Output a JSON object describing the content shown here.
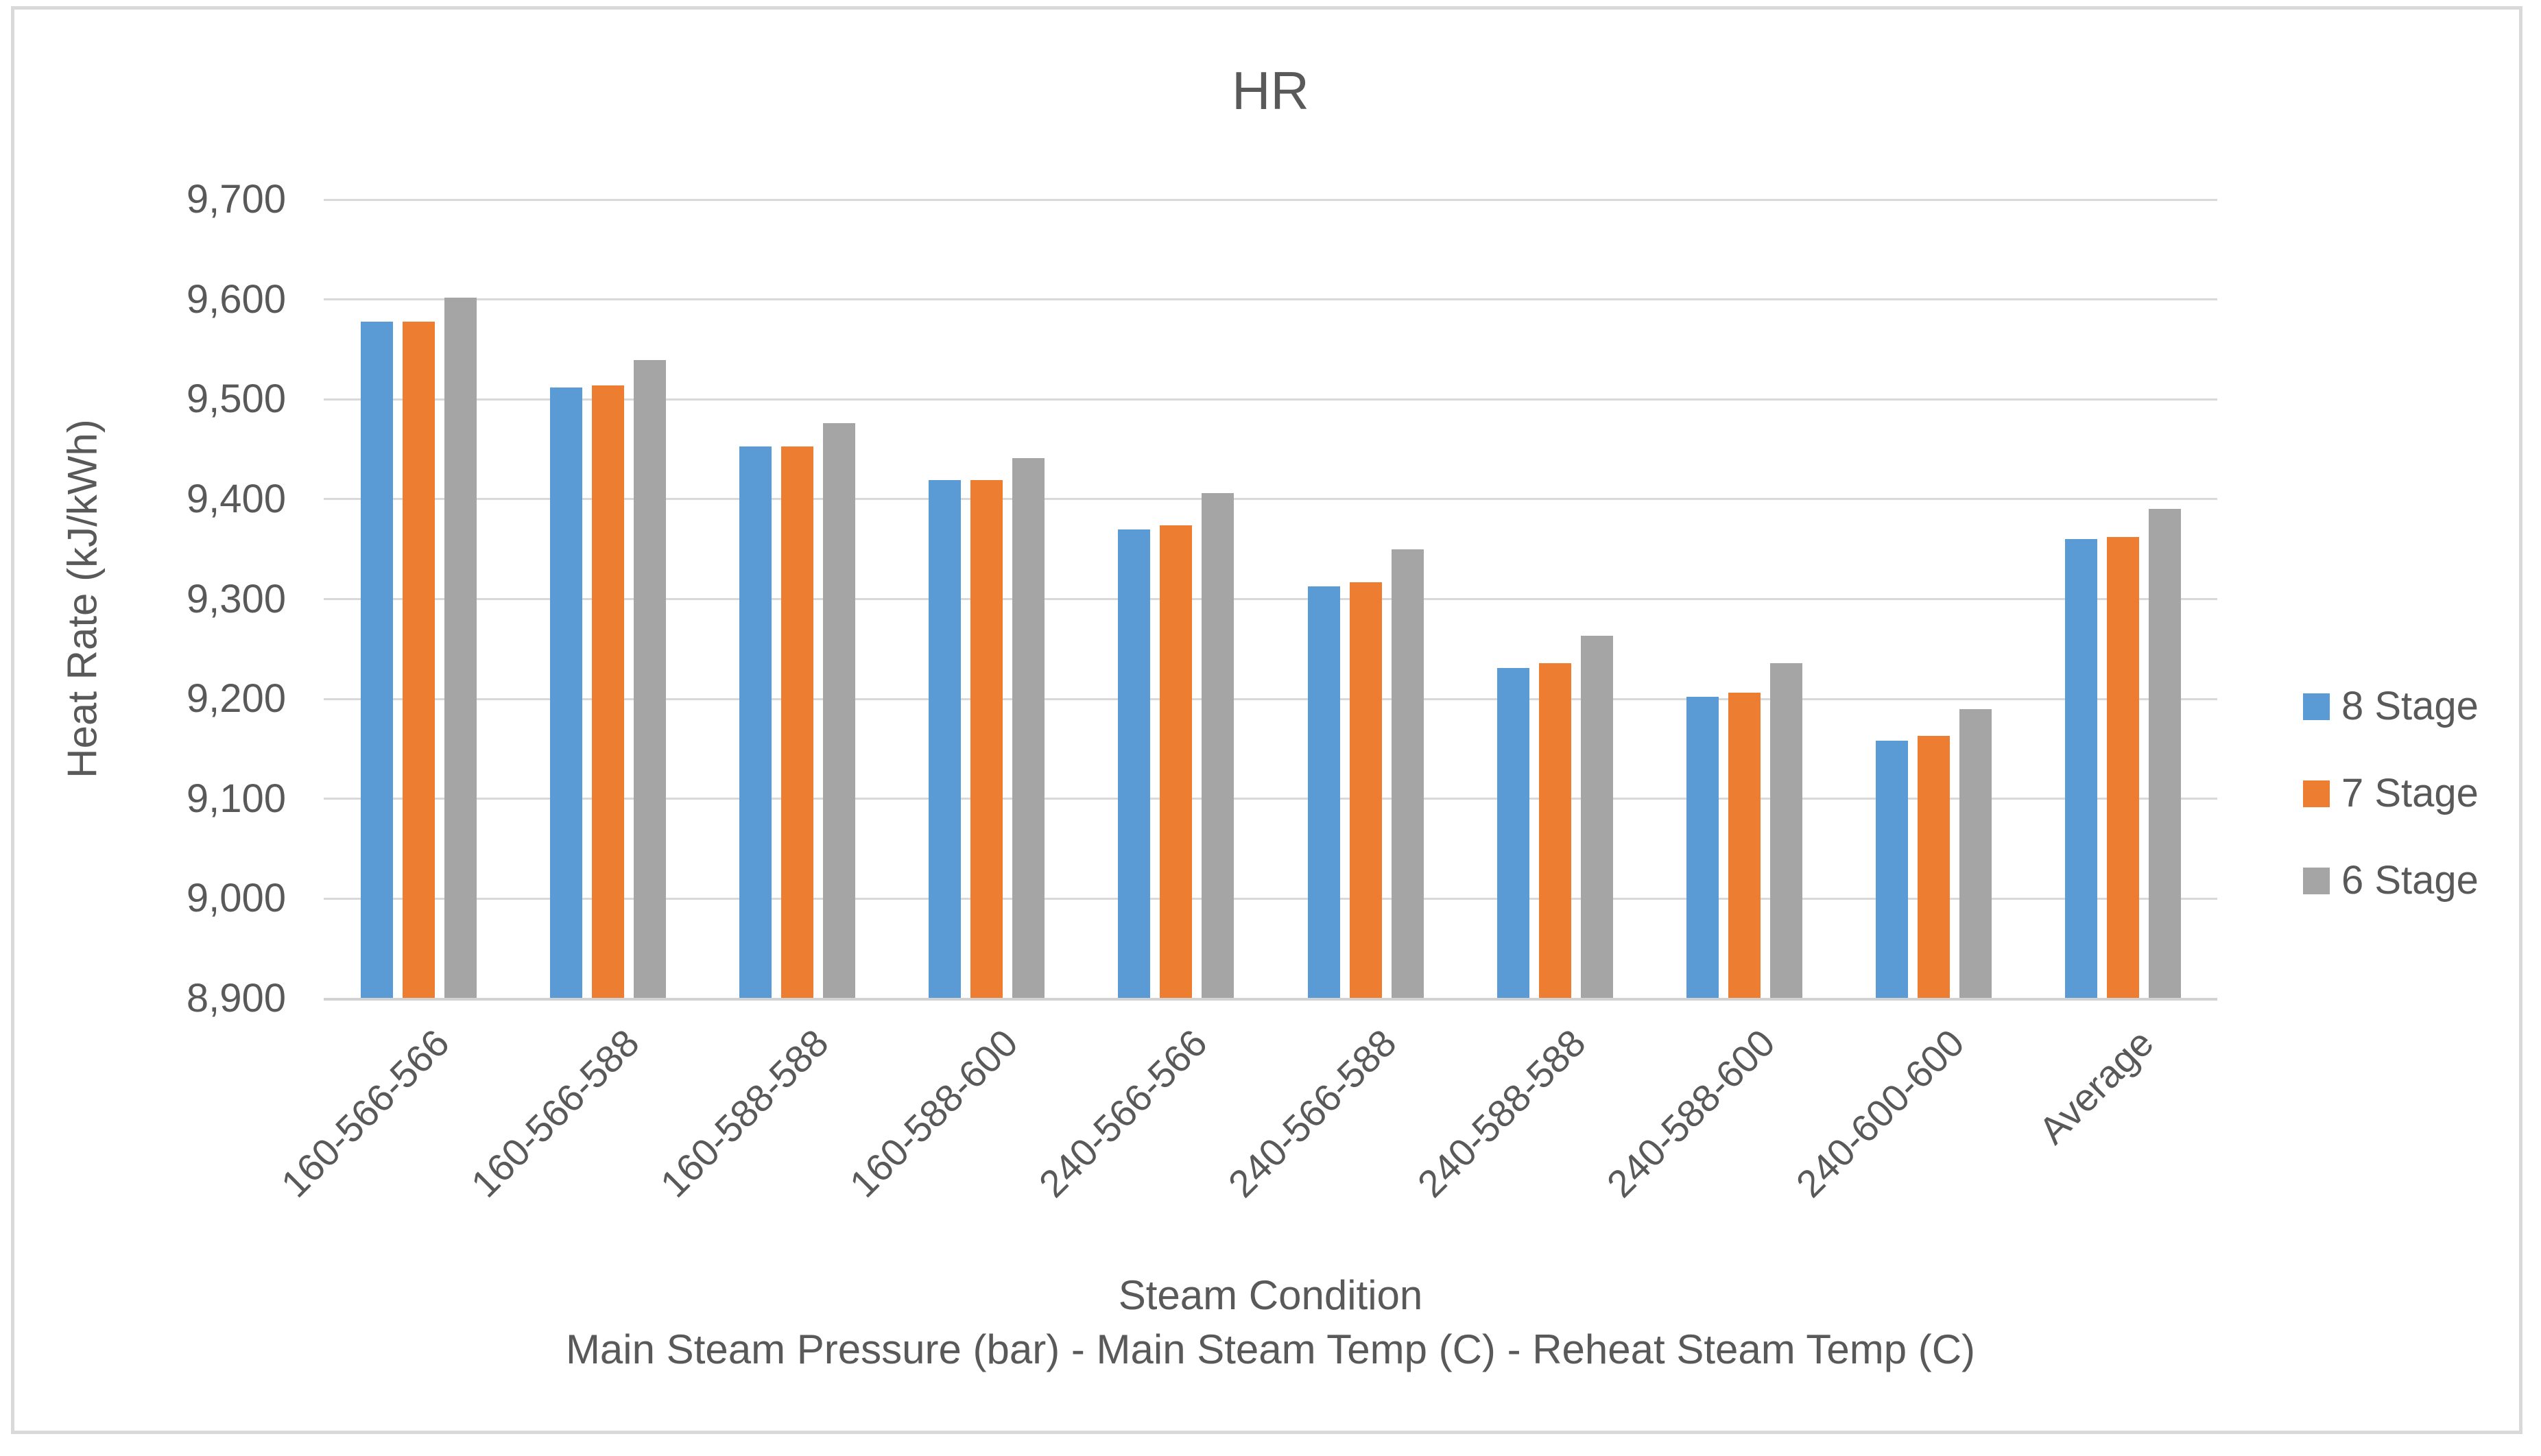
{
  "title": "HR",
  "legend": {
    "items": [
      {
        "label": "8 Stage",
        "color": "#5b9bd5"
      },
      {
        "label": "7 Stage",
        "color": "#ed7d31"
      },
      {
        "label": "6 Stage",
        "color": "#a5a5a5"
      }
    ],
    "position": "right"
  },
  "colors": {
    "series_blue": "#5b9bd5",
    "series_orange": "#ed7d31",
    "series_gray": "#a5a5a5",
    "text": "#595959",
    "gridline": "#d9d9d9",
    "frame_border": "#d9d9d9",
    "background": "#ffffff"
  },
  "chart_data": {
    "type": "bar",
    "title": "HR",
    "ylabel": "Heat Rate (kJ/kWh)",
    "xlabel_line1": "Steam Condition",
    "xlabel_line2": "Main Steam Pressure (bar) - Main Steam Temp (C) - Reheat Steam Temp (C)",
    "ylim": [
      8900,
      9700
    ],
    "ytick_step": 100,
    "yticks": [
      8900,
      9000,
      9100,
      9200,
      9300,
      9400,
      9500,
      9600,
      9700
    ],
    "grid": true,
    "legend_position": "right",
    "categories": [
      "160-566-566",
      "160-566-588",
      "160-588-588",
      "160-588-600",
      "240-566-566",
      "240-566-588",
      "240-588-588",
      "240-588-600",
      "240-600-600",
      "Average"
    ],
    "series": [
      {
        "name": "8 Stage",
        "color": "#5b9bd5",
        "values": [
          9578,
          9512,
          9453,
          9419,
          9370,
          9313,
          9231,
          9202,
          9158,
          9360
        ]
      },
      {
        "name": "7 Stage",
        "color": "#ed7d31",
        "values": [
          9578,
          9514,
          9453,
          9419,
          9374,
          9317,
          9236,
          9206,
          9163,
          9362
        ]
      },
      {
        "name": "6 Stage",
        "color": "#a5a5a5",
        "values": [
          9602,
          9539,
          9476,
          9441,
          9406,
          9350,
          9263,
          9236,
          9190,
          9390
        ]
      }
    ]
  }
}
